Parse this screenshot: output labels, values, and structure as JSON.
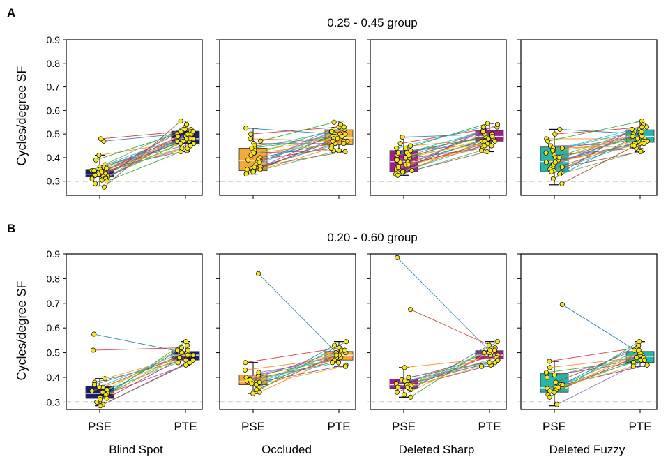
{
  "chart_data": {
    "type": "box",
    "conditions": [
      {
        "name": "Blind Spot",
        "color": "#1b1f6e"
      },
      {
        "name": "Occluded",
        "color": "#f6a83b"
      },
      {
        "name": "Deleted Sharp",
        "color": "#9c1f8c"
      },
      {
        "name": "Deleted Fuzzy",
        "color": "#2ab3a8"
      }
    ],
    "x_categories": [
      "PSE",
      "PTE"
    ],
    "ylabel": "Cycles/degree SF",
    "yticks": [
      0.3,
      0.4,
      0.5,
      0.6,
      0.7,
      0.8,
      0.9
    ],
    "reference_line": 0.3,
    "line_colors": [
      "#1f77b4",
      "#d62728",
      "#ff7f0e",
      "#2ca02c",
      "#9467bd",
      "#8c564b",
      "#17becf",
      "#e6ab02",
      "#7f3f98",
      "#4daf4a"
    ],
    "groups": [
      {
        "letter": "A",
        "title": "0.25 - 0.45 group",
        "ylim": [
          0.24,
          0.9
        ],
        "panels": [
          {
            "condition": "Blind Spot",
            "pse": {
              "q1": 0.318,
              "median": 0.33,
              "q3": 0.35,
              "whisker_low": 0.28,
              "whisker_high": 0.41
            },
            "pte": {
              "q1": 0.46,
              "median": 0.48,
              "q3": 0.512,
              "whisker_low": 0.425,
              "whisker_high": 0.555
            },
            "pse_points": [
              0.47,
              0.48,
              0.41,
              0.39,
              0.37,
              0.36,
              0.36,
              0.35,
              0.35,
              0.345,
              0.34,
              0.34,
              0.335,
              0.33,
              0.33,
              0.33,
              0.325,
              0.32,
              0.32,
              0.315,
              0.31,
              0.31,
              0.305,
              0.3,
              0.29,
              0.275,
              0.345,
              0.355
            ],
            "pte_points": [
              0.5,
              0.51,
              0.47,
              0.52,
              0.46,
              0.49,
              0.5,
              0.48,
              0.43,
              0.53,
              0.47,
              0.51,
              0.44,
              0.49,
              0.5,
              0.52,
              0.45,
              0.48,
              0.54,
              0.46,
              0.5,
              0.47,
              0.49,
              0.425,
              0.51,
              0.555,
              0.48,
              0.44
            ]
          },
          {
            "condition": "Occluded",
            "pse": {
              "q1": 0.345,
              "median": 0.388,
              "q3": 0.44,
              "whisker_low": 0.33,
              "whisker_high": 0.525
            },
            "pte": {
              "q1": 0.455,
              "median": 0.483,
              "q3": 0.518,
              "whisker_low": 0.425,
              "whisker_high": 0.555
            },
            "pse_points": [
              0.525,
              0.5,
              0.48,
              0.47,
              0.46,
              0.45,
              0.44,
              0.43,
              0.42,
              0.41,
              0.4,
              0.39,
              0.39,
              0.38,
              0.37,
              0.36,
              0.355,
              0.35,
              0.345,
              0.34,
              0.34,
              0.335,
              0.33,
              0.44,
              0.38,
              0.36,
              0.35,
              0.42
            ],
            "pte_points": [
              0.5,
              0.53,
              0.47,
              0.55,
              0.46,
              0.49,
              0.51,
              0.48,
              0.43,
              0.52,
              0.47,
              0.44,
              0.5,
              0.49,
              0.54,
              0.46,
              0.45,
              0.48,
              0.52,
              0.43,
              0.5,
              0.47,
              0.44,
              0.49,
              0.51,
              0.425,
              0.53,
              0.46
            ]
          },
          {
            "condition": "Deleted Sharp",
            "pse": {
              "q1": 0.34,
              "median": 0.383,
              "q3": 0.43,
              "whisker_low": 0.325,
              "whisker_high": 0.487
            },
            "pte": {
              "q1": 0.47,
              "median": 0.49,
              "q3": 0.515,
              "whisker_low": 0.425,
              "whisker_high": 0.545
            },
            "pse_points": [
              0.487,
              0.46,
              0.45,
              0.44,
              0.43,
              0.42,
              0.41,
              0.4,
              0.39,
              0.38,
              0.38,
              0.37,
              0.36,
              0.35,
              0.35,
              0.34,
              0.34,
              0.335,
              0.33,
              0.325,
              0.4,
              0.37,
              0.36,
              0.42,
              0.39,
              0.345,
              0.44,
              0.41
            ],
            "pte_points": [
              0.5,
              0.53,
              0.48,
              0.545,
              0.46,
              0.49,
              0.51,
              0.48,
              0.44,
              0.52,
              0.47,
              0.45,
              0.5,
              0.49,
              0.54,
              0.47,
              0.46,
              0.48,
              0.52,
              0.43,
              0.5,
              0.47,
              0.45,
              0.49,
              0.51,
              0.425,
              0.53,
              0.46
            ]
          },
          {
            "condition": "Deleted Fuzzy",
            "pse": {
              "q1": 0.34,
              "median": 0.383,
              "q3": 0.445,
              "whisker_low": 0.285,
              "whisker_high": 0.52
            },
            "pte": {
              "q1": 0.465,
              "median": 0.49,
              "q3": 0.518,
              "whisker_low": 0.425,
              "whisker_high": 0.555
            },
            "pse_points": [
              0.52,
              0.5,
              0.48,
              0.47,
              0.45,
              0.44,
              0.43,
              0.42,
              0.41,
              0.4,
              0.39,
              0.385,
              0.38,
              0.37,
              0.36,
              0.35,
              0.345,
              0.34,
              0.335,
              0.33,
              0.31,
              0.29,
              0.44,
              0.4,
              0.37,
              0.36,
              0.43,
              0.38
            ],
            "pte_points": [
              0.5,
              0.53,
              0.48,
              0.555,
              0.46,
              0.49,
              0.51,
              0.48,
              0.44,
              0.52,
              0.47,
              0.45,
              0.5,
              0.49,
              0.54,
              0.47,
              0.46,
              0.48,
              0.52,
              0.43,
              0.5,
              0.47,
              0.45,
              0.49,
              0.51,
              0.425,
              0.53,
              0.46
            ]
          }
        ]
      },
      {
        "letter": "B",
        "title": "0.20 - 0.60 group",
        "ylim": [
          0.27,
          0.9
        ],
        "panels": [
          {
            "condition": "Blind Spot",
            "pse": {
              "q1": 0.315,
              "median": 0.335,
              "q3": 0.365,
              "whisker_low": 0.285,
              "whisker_high": 0.395
            },
            "pte": {
              "q1": 0.47,
              "median": 0.49,
              "q3": 0.505,
              "whisker_low": 0.45,
              "whisker_high": 0.545
            },
            "pse_points": [
              0.575,
              0.51,
              0.395,
              0.38,
              0.37,
              0.36,
              0.35,
              0.34,
              0.335,
              0.33,
              0.32,
              0.315,
              0.31,
              0.3,
              0.29,
              0.285,
              0.36,
              0.345
            ],
            "pte_points": [
              0.505,
              0.52,
              0.48,
              0.47,
              0.49,
              0.5,
              0.46,
              0.51,
              0.45,
              0.48,
              0.53,
              0.49,
              0.5,
              0.545,
              0.47,
              0.46,
              0.51,
              0.49
            ]
          },
          {
            "condition": "Occluded",
            "pse": {
              "q1": 0.37,
              "median": 0.383,
              "q3": 0.41,
              "whisker_low": 0.335,
              "whisker_high": 0.46
            },
            "pte": {
              "q1": 0.47,
              "median": 0.49,
              "q3": 0.505,
              "whisker_low": 0.445,
              "whisker_high": 0.545
            },
            "pse_points": [
              0.82,
              0.46,
              0.43,
              0.41,
              0.4,
              0.39,
              0.385,
              0.38,
              0.375,
              0.37,
              0.36,
              0.35,
              0.34,
              0.335,
              0.42,
              0.39,
              0.38,
              0.37
            ],
            "pte_points": [
              0.5,
              0.52,
              0.48,
              0.47,
              0.49,
              0.51,
              0.46,
              0.5,
              0.45,
              0.48,
              0.53,
              0.49,
              0.5,
              0.545,
              0.47,
              0.46,
              0.51,
              0.445
            ]
          },
          {
            "condition": "Deleted Sharp",
            "pse": {
              "q1": 0.355,
              "median": 0.37,
              "q3": 0.393,
              "whisker_low": 0.32,
              "whisker_high": 0.44
            },
            "pte": {
              "q1": 0.475,
              "median": 0.49,
              "q3": 0.508,
              "whisker_low": 0.445,
              "whisker_high": 0.545
            },
            "pse_points": [
              0.885,
              0.675,
              0.44,
              0.4,
              0.39,
              0.38,
              0.375,
              0.37,
              0.365,
              0.36,
              0.35,
              0.34,
              0.33,
              0.32,
              0.385,
              0.37,
              0.355,
              0.36
            ],
            "pte_points": [
              0.5,
              0.52,
              0.48,
              0.47,
              0.49,
              0.51,
              0.46,
              0.5,
              0.45,
              0.48,
              0.53,
              0.49,
              0.5,
              0.545,
              0.47,
              0.46,
              0.51,
              0.445
            ]
          },
          {
            "condition": "Deleted Fuzzy",
            "pse": {
              "q1": 0.34,
              "median": 0.358,
              "q3": 0.415,
              "whisker_low": 0.285,
              "whisker_high": 0.465
            },
            "pte": {
              "q1": 0.46,
              "median": 0.485,
              "q3": 0.505,
              "whisker_low": 0.445,
              "whisker_high": 0.545
            },
            "pse_points": [
              0.695,
              0.465,
              0.44,
              0.42,
              0.4,
              0.38,
              0.37,
              0.36,
              0.355,
              0.35,
              0.345,
              0.34,
              0.33,
              0.32,
              0.29,
              0.41,
              0.37,
              0.36
            ],
            "pte_points": [
              0.5,
              0.52,
              0.48,
              0.47,
              0.49,
              0.51,
              0.46,
              0.5,
              0.45,
              0.48,
              0.53,
              0.49,
              0.5,
              0.545,
              0.47,
              0.46,
              0.51,
              0.445
            ]
          }
        ]
      }
    ]
  }
}
